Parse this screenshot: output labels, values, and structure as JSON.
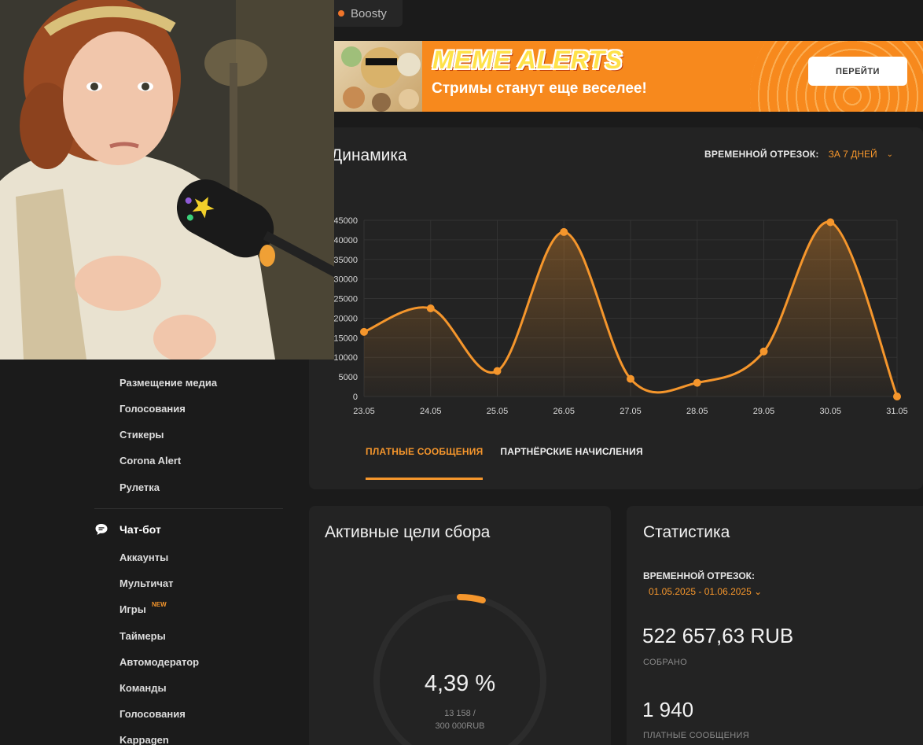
{
  "topbar": {
    "boosty_label": "Boosty"
  },
  "banner": {
    "title": "MEME ALERTS",
    "subtitle": "Стримы станут еще веселее!",
    "button_label": "ПЕРЕЙТИ"
  },
  "dynamics": {
    "title": "Динамика",
    "period_label": "ВРЕМЕННОЙ ОТРЕЗОК:",
    "period_value": "ЗА 7 ДНЕЙ",
    "tabs": [
      {
        "label": "ПЛАТНЫЕ СООБЩЕНИЯ",
        "active": true
      },
      {
        "label": "ПАРТНЁРСКИЕ НАЧИСЛЕНИЯ",
        "active": false
      }
    ]
  },
  "chart_data": {
    "type": "area",
    "x": [
      "23.05",
      "24.05",
      "25.05",
      "26.05",
      "27.05",
      "28.05",
      "29.05",
      "30.05",
      "31.05"
    ],
    "series": [
      {
        "values": [
          16500,
          22500,
          6500,
          42000,
          4500,
          3500,
          11500,
          44500,
          0
        ]
      }
    ],
    "y_ticks": [
      "0",
      "5000",
      "10000",
      "15000",
      "20000",
      "25000",
      "30000",
      "35000",
      "40000",
      "45000"
    ],
    "ylim": [
      0,
      45000
    ],
    "grid": true,
    "colors": {
      "line": "#f5962c",
      "fill": "#f5962c",
      "grid": "#333333",
      "tick": "#d8d8d8"
    }
  },
  "sidebar": {
    "items_top": [
      "Размещение медиа",
      "Голосования",
      "Стикеры",
      "Corona Alert",
      "Рулетка"
    ],
    "group_label": "Чат-бот",
    "group_icon": "chat-bubble-icon",
    "items_group": [
      "Аккаунты",
      "Мультичат",
      "Игры",
      "Таймеры",
      "Автомодератор",
      "Команды",
      "Голосования",
      "Kappagen"
    ],
    "new_badge": "NEW"
  },
  "goals": {
    "title": "Активные цели сбора",
    "percent": "4,39 %",
    "progress_fraction": 0.0439,
    "amount_line1": "13 158 /",
    "amount_line2": "300 000RUB"
  },
  "stats": {
    "title": "Статистика",
    "period_label": "ВРЕМЕННОЙ ОТРЕЗОК:",
    "period_value": "01.05.2025 - 01.06.2025",
    "sum": "522 657,63 RUB",
    "sum_label": "СОБРАНО",
    "count": "1 940",
    "count_label": "ПЛАТНЫЕ СООБЩЕНИЯ"
  },
  "colors": {
    "accent": "#f5962c",
    "background": "#1b1b1b",
    "card": "#232323",
    "banner": "#f7891d"
  }
}
